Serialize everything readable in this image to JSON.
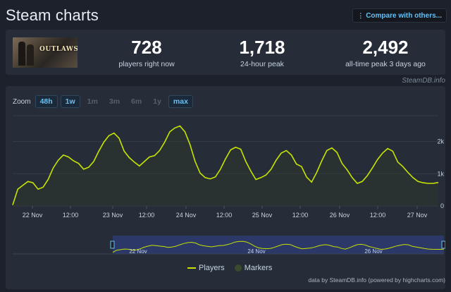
{
  "header": {
    "title": "Steam charts",
    "compare_label": "Compare with others...",
    "compare_icon": "compare-icon"
  },
  "stats": {
    "game_logo_text": "OUTLAWS",
    "items": [
      {
        "value": "728",
        "label": "players right now"
      },
      {
        "value": "1,718",
        "label": "24-hour peak"
      },
      {
        "value": "2,492",
        "label": "all-time peak 3 days ago"
      }
    ]
  },
  "steamdb_credit": "SteamDB.info",
  "zoom": {
    "label": "Zoom",
    "options": [
      {
        "label": "48h",
        "active": true
      },
      {
        "label": "1w",
        "active": true
      },
      {
        "label": "1m",
        "active": false
      },
      {
        "label": "3m",
        "active": false
      },
      {
        "label": "6m",
        "active": false
      },
      {
        "label": "1y",
        "active": false
      },
      {
        "label": "max",
        "active": true
      }
    ]
  },
  "colors": {
    "series": "#c6e400",
    "accent": "#66c0f4",
    "navigator_fill": "#2c3a6e"
  },
  "chart_data": {
    "type": "line",
    "series": [
      {
        "name": "Players",
        "x": [
          0,
          2,
          4,
          6,
          8,
          10,
          12,
          14,
          16,
          18,
          20,
          22,
          24,
          26,
          28,
          30,
          32,
          34,
          36,
          38,
          40,
          42,
          44,
          46,
          48,
          50,
          52,
          54,
          56,
          58,
          60,
          62,
          64,
          66,
          68,
          70,
          72,
          74,
          76,
          78,
          80,
          82,
          84,
          86,
          88,
          90,
          92,
          94,
          96,
          98,
          100,
          102,
          104,
          106,
          108,
          110,
          112,
          114,
          116,
          118,
          120,
          122,
          124,
          126,
          128,
          130,
          132,
          134,
          136,
          138,
          140,
          142,
          144,
          146,
          148,
          150,
          152,
          154,
          156,
          158,
          160,
          162,
          164,
          166,
          168
        ],
        "values": [
          30,
          520,
          640,
          760,
          720,
          520,
          580,
          820,
          1180,
          1420,
          1580,
          1520,
          1400,
          1320,
          1140,
          1200,
          1380,
          1700,
          1980,
          2180,
          2260,
          2100,
          1700,
          1500,
          1360,
          1240,
          1380,
          1520,
          1560,
          1720,
          1980,
          2300,
          2420,
          2480,
          2300,
          1900,
          1380,
          1020,
          880,
          840,
          900,
          1140,
          1460,
          1740,
          1820,
          1760,
          1380,
          1080,
          820,
          880,
          960,
          1140,
          1420,
          1640,
          1720,
          1580,
          1300,
          1220,
          900,
          740,
          1040,
          1400,
          1720,
          1800,
          1660,
          1320,
          1120,
          880,
          700,
          760,
          940,
          1180,
          1440,
          1640,
          1780,
          1700,
          1360,
          1220,
          1040,
          880,
          760,
          720,
          700,
          700,
          728
        ]
      }
    ],
    "x_tick_labels": [
      "22 Nov",
      "12:00",
      "23 Nov",
      "12:00",
      "24 Nov",
      "12:00",
      "25 Nov",
      "12:00",
      "26 Nov",
      "12:00",
      "27 Nov"
    ],
    "x_tick_positions": [
      12,
      30,
      48,
      66,
      84,
      102,
      120,
      138,
      156,
      168,
      174
    ],
    "y_tick_labels": [
      "0",
      "1k",
      "2k"
    ],
    "ylim": [
      0,
      2800
    ],
    "xlim": [
      0,
      168
    ],
    "navigator_labels": [
      "22 Nov",
      "24 Nov",
      "26 Nov"
    ],
    "legend": [
      {
        "name": "Players"
      },
      {
        "name": "Markers"
      }
    ],
    "legend_placement": "bottom-center",
    "grid": true
  },
  "credits": "data by SteamDB.info (powered by highcharts.com)"
}
